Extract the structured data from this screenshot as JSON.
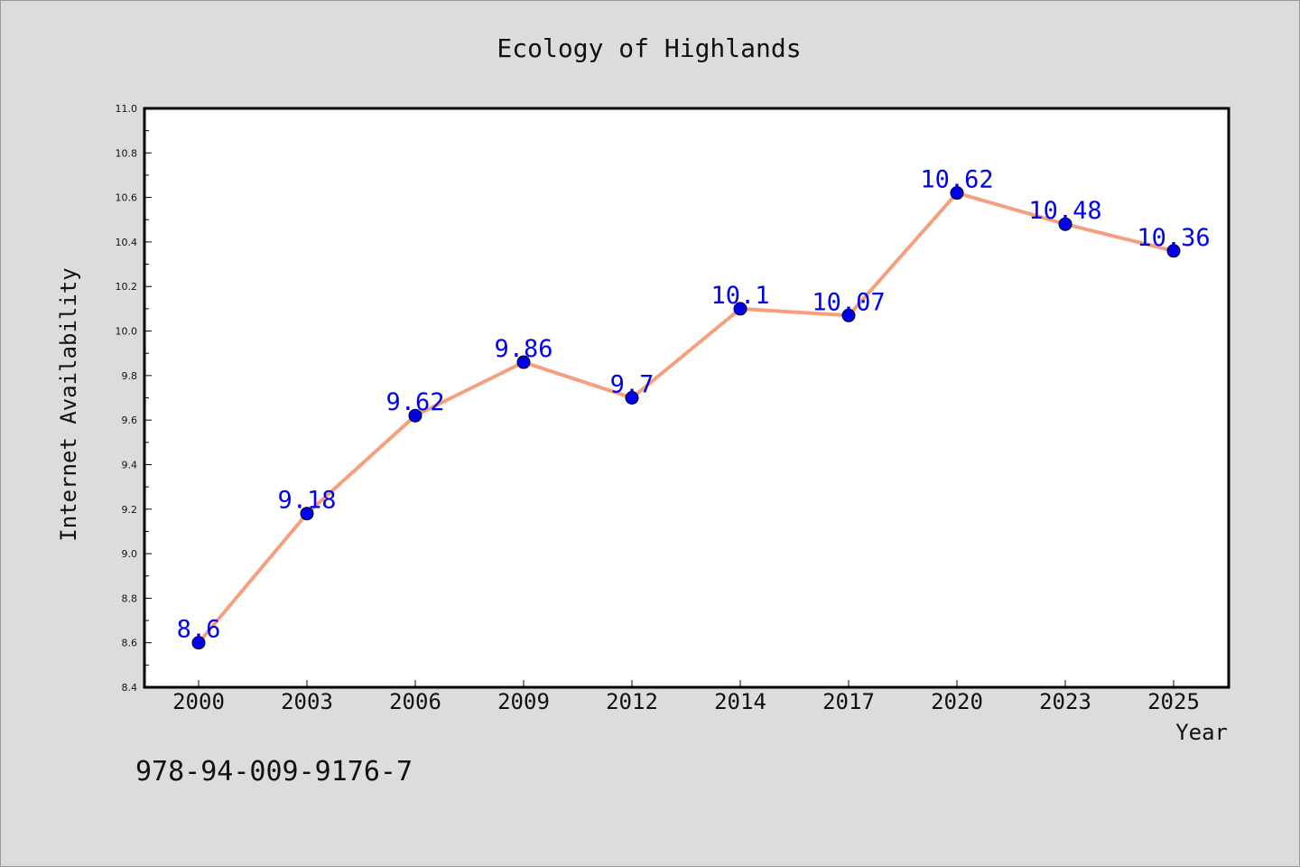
{
  "chart_data": {
    "type": "line",
    "title": "Ecology of Highlands",
    "xlabel": "Year",
    "ylabel": "Internet Availability",
    "categories": [
      "2000",
      "2003",
      "2006",
      "2009",
      "2012",
      "2014",
      "2017",
      "2020",
      "2023",
      "2025"
    ],
    "values": [
      8.6,
      9.18,
      9.62,
      9.86,
      9.7,
      10.1,
      10.07,
      10.62,
      10.48,
      10.36
    ],
    "data_labels": [
      "8.6",
      "9.18",
      "9.62",
      "9.86",
      "9.7",
      "10.1",
      "10.07",
      "10.62",
      "10.48",
      "10.36"
    ],
    "ylim": [
      8.4,
      11.0
    ],
    "y_ticks": [
      "8.4",
      "8.6",
      "8.8",
      "9.0",
      "9.2",
      "9.4",
      "9.6",
      "9.8",
      "10.0",
      "10.2",
      "10.4",
      "10.6",
      "10.8",
      "11.0"
    ],
    "grid": false,
    "legend": "none",
    "line_color": "#f4a07f",
    "marker_color": "#0000ee",
    "label_color": "#0000ee"
  },
  "footer": {
    "isbn": "978-94-009-9176-7"
  }
}
